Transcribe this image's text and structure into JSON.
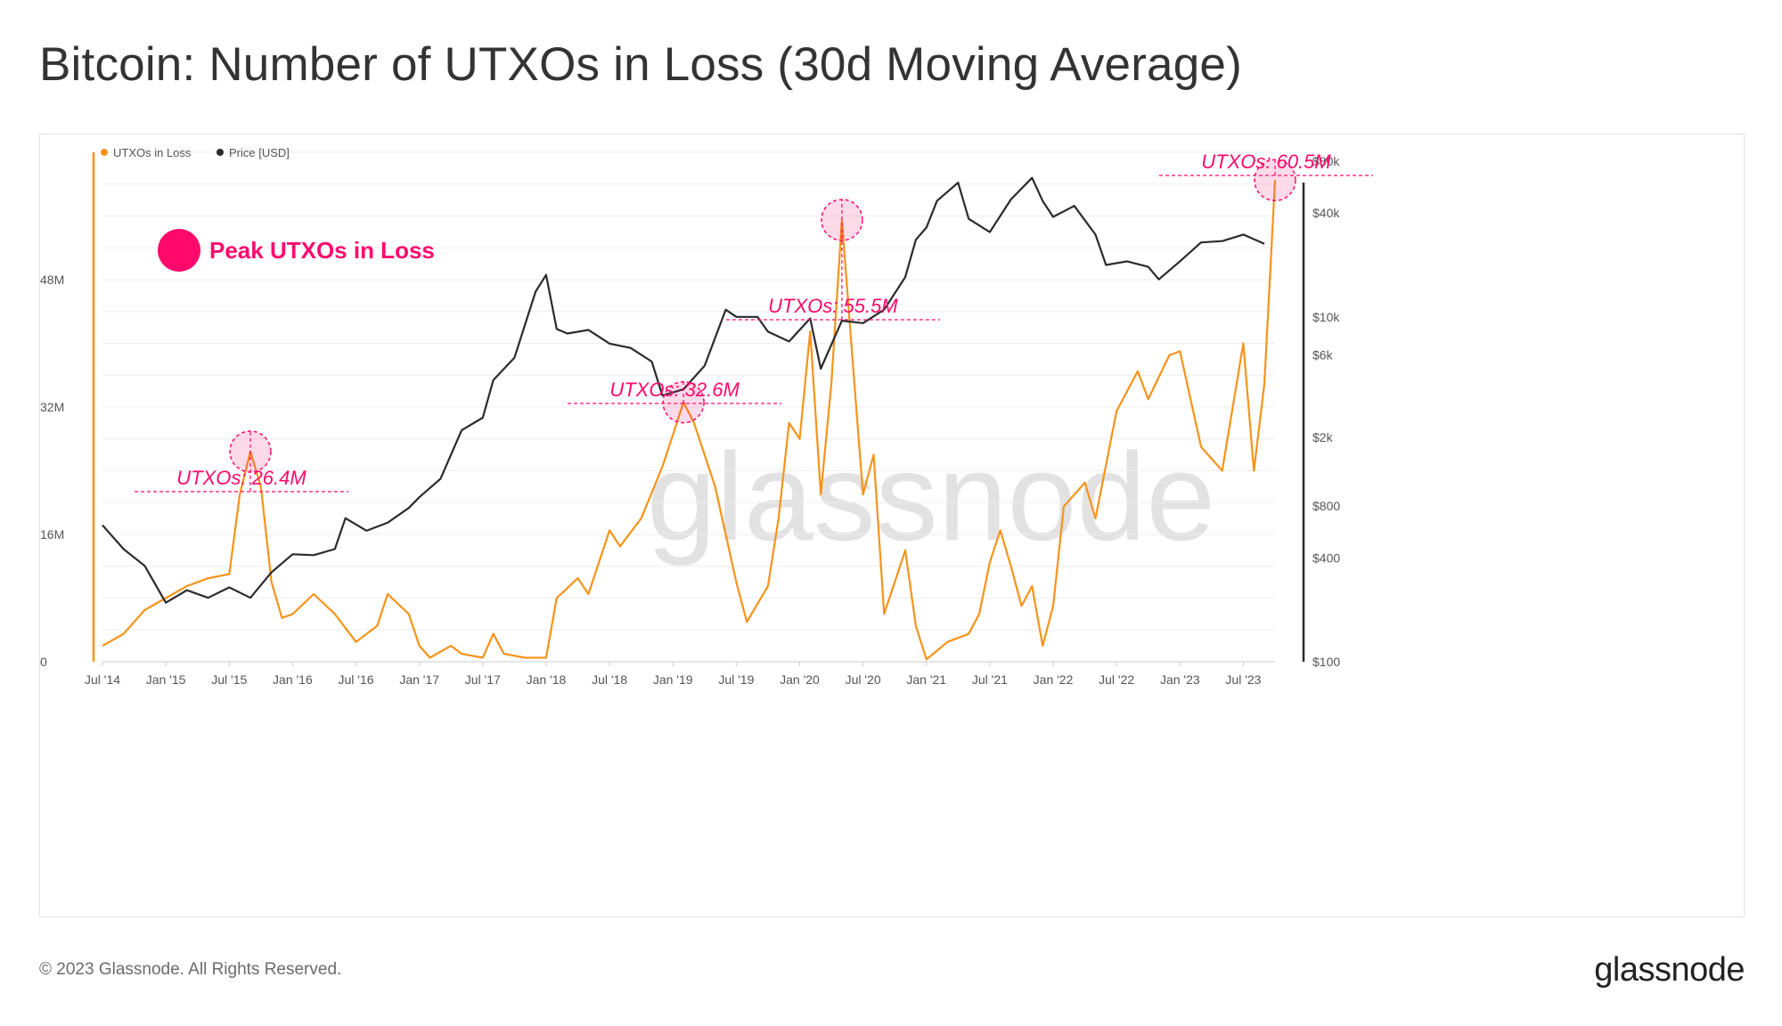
{
  "title": "Bitcoin: Number of UTXOs in Loss (30d Moving Average)",
  "footer": {
    "copyright": "© 2023 Glassnode. All Rights Reserved.",
    "logo_text": "glassnode"
  },
  "watermark": "glassnode",
  "colors": {
    "utxo": "#f7931a",
    "price": "#2b2b2b",
    "highlight": "#ff0a6c",
    "grid": "#eeeeee",
    "axis_text": "#555555"
  },
  "chart_data": {
    "type": "line",
    "x_tick_labels": [
      "Jul '14",
      "Jan '15",
      "Jul '15",
      "Jan '16",
      "Jul '16",
      "Jan '17",
      "Jul '17",
      "Jan '18",
      "Jul '18",
      "Jan '19",
      "Jul '19",
      "Jan '20",
      "Jul '20",
      "Jan '21",
      "Jul '21",
      "Jan '22",
      "Jul '22",
      "Jan '23",
      "Jul '23"
    ],
    "x_range": [
      "2014-07",
      "2023-10"
    ],
    "y_left": {
      "ticks": [
        "0",
        "16M",
        "32M",
        "48M"
      ],
      "tick_values": [
        0,
        16,
        32,
        48
      ],
      "range": [
        0,
        64
      ],
      "unit": "M"
    },
    "y_right": {
      "scale": "log",
      "ticks": [
        "$100",
        "$400",
        "$800",
        "$2k",
        "$6k",
        "$10k",
        "$40k",
        "$80k"
      ],
      "tick_values": [
        100,
        400,
        800,
        2000,
        6000,
        10000,
        40000,
        80000
      ]
    },
    "legend": {
      "placement": "top-left",
      "entries": [
        {
          "label": "UTXOs in Loss",
          "color": "#f7931a"
        },
        {
          "label": "Price [USD]",
          "color": "#2b2b2b"
        }
      ]
    },
    "callout_legend": "Peak UTXOs in Loss",
    "grid": true,
    "series": [
      {
        "name": "UTXOs in Loss",
        "axis": "left",
        "unit": "M",
        "color": "#f7931a",
        "points": [
          [
            "2014-07",
            2.0
          ],
          [
            "2014-09",
            3.5
          ],
          [
            "2014-11",
            6.5
          ],
          [
            "2015-01",
            8.0
          ],
          [
            "2015-03",
            9.5
          ],
          [
            "2015-05",
            10.5
          ],
          [
            "2015-07",
            11.0
          ],
          [
            "2015-08",
            21.0
          ],
          [
            "2015-09",
            26.4
          ],
          [
            "2015-10",
            22.0
          ],
          [
            "2015-11",
            10.0
          ],
          [
            "2015-12",
            5.5
          ],
          [
            "2016-01",
            6.0
          ],
          [
            "2016-03",
            8.5
          ],
          [
            "2016-05",
            6.0
          ],
          [
            "2016-07",
            2.5
          ],
          [
            "2016-09",
            4.5
          ],
          [
            "2016-10",
            8.5
          ],
          [
            "2016-12",
            6.0
          ],
          [
            "2017-01",
            2.0
          ],
          [
            "2017-02",
            0.5
          ],
          [
            "2017-04",
            2.0
          ],
          [
            "2017-05",
            1.0
          ],
          [
            "2017-07",
            0.5
          ],
          [
            "2017-08",
            3.5
          ],
          [
            "2017-09",
            1.0
          ],
          [
            "2017-11",
            0.5
          ],
          [
            "2018-01",
            0.5
          ],
          [
            "2018-02",
            8.0
          ],
          [
            "2018-04",
            10.5
          ],
          [
            "2018-05",
            8.5
          ],
          [
            "2018-07",
            16.5
          ],
          [
            "2018-08",
            14.5
          ],
          [
            "2018-10",
            18.0
          ],
          [
            "2018-12",
            24.5
          ],
          [
            "2019-01",
            28.5
          ],
          [
            "2019-02",
            32.6
          ],
          [
            "2019-03",
            30.0
          ],
          [
            "2019-05",
            22.0
          ],
          [
            "2019-07",
            10.0
          ],
          [
            "2019-08",
            5.0
          ],
          [
            "2019-10",
            9.5
          ],
          [
            "2019-11",
            18.0
          ],
          [
            "2019-12",
            30.0
          ],
          [
            "2020-01",
            28.0
          ],
          [
            "2020-02",
            41.5
          ],
          [
            "2020-03",
            21.0
          ],
          [
            "2020-04",
            35.0
          ],
          [
            "2020-05",
            55.5
          ],
          [
            "2020-06",
            38.0
          ],
          [
            "2020-07",
            21.0
          ],
          [
            "2020-08",
            26.0
          ],
          [
            "2020-09",
            6.0
          ],
          [
            "2020-11",
            14.0
          ],
          [
            "2020-12",
            4.5
          ],
          [
            "2021-01",
            0.3
          ],
          [
            "2021-03",
            2.5
          ],
          [
            "2021-05",
            3.5
          ],
          [
            "2021-06",
            6.0
          ],
          [
            "2021-07",
            12.5
          ],
          [
            "2021-08",
            16.5
          ],
          [
            "2021-09",
            12.0
          ],
          [
            "2021-10",
            7.0
          ],
          [
            "2021-11",
            9.5
          ],
          [
            "2021-12",
            2.0
          ],
          [
            "2022-01",
            7.0
          ],
          [
            "2022-02",
            19.5
          ],
          [
            "2022-04",
            22.5
          ],
          [
            "2022-05",
            18.0
          ],
          [
            "2022-07",
            31.5
          ],
          [
            "2022-09",
            36.5
          ],
          [
            "2022-10",
            33.0
          ],
          [
            "2022-12",
            38.5
          ],
          [
            "2023-01",
            39.0
          ],
          [
            "2023-03",
            27.0
          ],
          [
            "2023-05",
            24.0
          ],
          [
            "2023-07",
            40.0
          ],
          [
            "2023-08",
            24.0
          ],
          [
            "2023-09",
            35.0
          ],
          [
            "2023-10",
            60.5
          ]
        ]
      },
      {
        "name": "Price [USD]",
        "axis": "right",
        "color": "#2b2b2b",
        "points": [
          [
            "2014-07",
            620
          ],
          [
            "2014-09",
            450
          ],
          [
            "2014-11",
            360
          ],
          [
            "2015-01",
            220
          ],
          [
            "2015-03",
            260
          ],
          [
            "2015-05",
            235
          ],
          [
            "2015-07",
            270
          ],
          [
            "2015-09",
            235
          ],
          [
            "2015-11",
            330
          ],
          [
            "2016-01",
            420
          ],
          [
            "2016-03",
            415
          ],
          [
            "2016-05",
            450
          ],
          [
            "2016-06",
            680
          ],
          [
            "2016-08",
            575
          ],
          [
            "2016-10",
            640
          ],
          [
            "2016-12",
            780
          ],
          [
            "2017-01",
            900
          ],
          [
            "2017-03",
            1150
          ],
          [
            "2017-05",
            2200
          ],
          [
            "2017-07",
            2600
          ],
          [
            "2017-08",
            4300
          ],
          [
            "2017-10",
            5800
          ],
          [
            "2017-12",
            14000
          ],
          [
            "2018-01",
            17500
          ],
          [
            "2018-02",
            8500
          ],
          [
            "2018-03",
            8000
          ],
          [
            "2018-05",
            8400
          ],
          [
            "2018-07",
            7000
          ],
          [
            "2018-09",
            6600
          ],
          [
            "2018-11",
            5500
          ],
          [
            "2018-12",
            3500
          ],
          [
            "2019-02",
            3800
          ],
          [
            "2019-04",
            5200
          ],
          [
            "2019-06",
            11000
          ],
          [
            "2019-07",
            10000
          ],
          [
            "2019-09",
            10000
          ],
          [
            "2019-10",
            8200
          ],
          [
            "2019-12",
            7200
          ],
          [
            "2020-02",
            9800
          ],
          [
            "2020-03",
            5000
          ],
          [
            "2020-05",
            9500
          ],
          [
            "2020-07",
            9200
          ],
          [
            "2020-09",
            11000
          ],
          [
            "2020-11",
            17000
          ],
          [
            "2020-12",
            28000
          ],
          [
            "2021-01",
            33000
          ],
          [
            "2021-02",
            47000
          ],
          [
            "2021-04",
            60000
          ],
          [
            "2021-05",
            37000
          ],
          [
            "2021-07",
            31000
          ],
          [
            "2021-09",
            48000
          ],
          [
            "2021-11",
            64000
          ],
          [
            "2021-12",
            47000
          ],
          [
            "2022-01",
            38000
          ],
          [
            "2022-03",
            44000
          ],
          [
            "2022-05",
            30000
          ],
          [
            "2022-06",
            20000
          ],
          [
            "2022-08",
            21000
          ],
          [
            "2022-10",
            19500
          ],
          [
            "2022-11",
            16500
          ],
          [
            "2023-01",
            21000
          ],
          [
            "2023-03",
            27000
          ],
          [
            "2023-05",
            27500
          ],
          [
            "2023-07",
            30000
          ],
          [
            "2023-09",
            26500
          ]
        ]
      }
    ],
    "annotations": [
      {
        "label": "UTXOs: 26.4M",
        "date": "2015-09",
        "value": 26.4,
        "axis": "left"
      },
      {
        "label": "UTXOs: 32.6M",
        "date": "2019-02",
        "value": 32.6,
        "axis": "left"
      },
      {
        "label": "UTXOs: 55.5M",
        "date": "2020-05",
        "value": 55.5,
        "axis": "left"
      },
      {
        "label": "UTXOs: 60.5M",
        "date": "2023-10",
        "value": 60.5,
        "axis": "left"
      }
    ]
  }
}
